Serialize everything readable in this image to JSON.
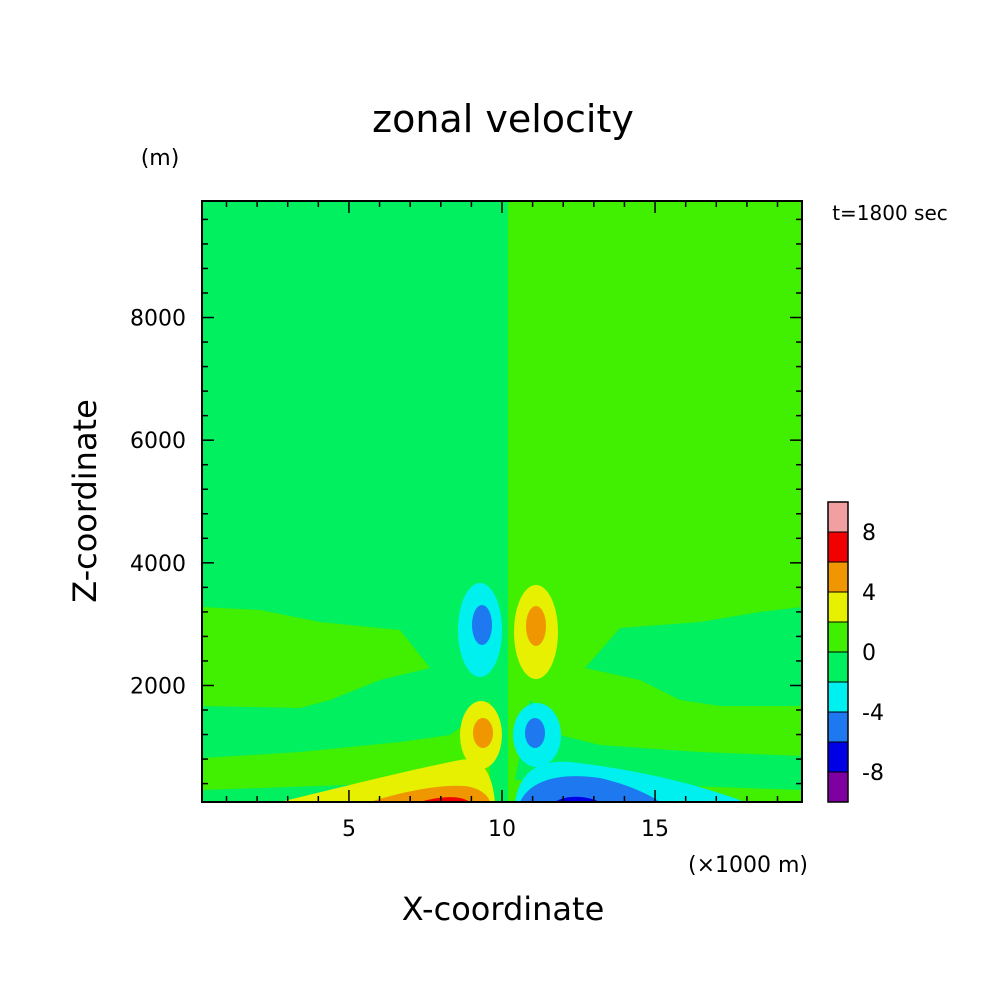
{
  "chart_data": {
    "type": "heatmap",
    "title": "zonal velocity",
    "xlabel": "X-coordinate",
    "ylabel": "Z-coordinate",
    "x_unit": "(×1000 m)",
    "y_unit": "(m)",
    "time_label": "t=1800 sec",
    "xlim": [
      0.2,
      19.8
    ],
    "ylim": [
      100,
      9900
    ],
    "x_ticks": [
      5,
      10,
      15
    ],
    "y_ticks": [
      2000,
      4000,
      6000,
      8000
    ],
    "x_tick_labels": [
      "5",
      "10",
      "15"
    ],
    "y_tick_labels": [
      "2000",
      "4000",
      "6000",
      "8000"
    ],
    "colorbar": {
      "levels": [
        -10,
        -8,
        -6,
        -4,
        -2,
        0,
        2,
        4,
        6,
        8,
        10
      ],
      "colors": [
        "#7f00a0",
        "#0000e6",
        "#1e78f0",
        "#00f0f0",
        "#00f060",
        "#40f000",
        "#e6f000",
        "#f09600",
        "#f00000",
        "#f0a0a0"
      ],
      "labels": [
        "-8",
        "-4",
        "0",
        "4",
        "8"
      ],
      "label_values": [
        -8,
        -4,
        0,
        4,
        8
      ]
    },
    "background_fill_value": 0,
    "right_half_fill_value": 1
  }
}
